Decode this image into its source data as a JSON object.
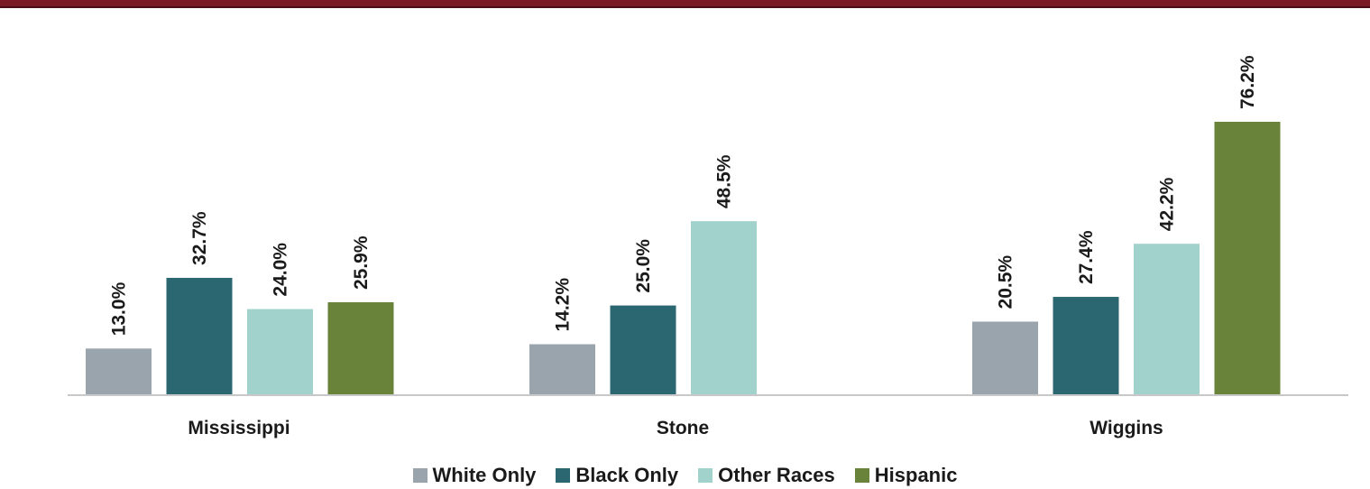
{
  "chart_data": {
    "type": "bar",
    "categories": [
      "Mississippi",
      "Stone",
      "Wiggins"
    ],
    "series": [
      {
        "name": "White Only",
        "color": "#9aa4ad",
        "values": [
          13.0,
          14.2,
          20.5
        ],
        "labels": [
          "13.0%",
          "14.2%",
          "20.5%"
        ]
      },
      {
        "name": "Black Only",
        "color": "#2b6770",
        "values": [
          32.7,
          25.0,
          27.4
        ],
        "labels": [
          "32.7%",
          "25.0%",
          "27.4%"
        ]
      },
      {
        "name": "Other Races",
        "color": "#a1d2cc",
        "values": [
          24.0,
          48.5,
          42.2
        ],
        "labels": [
          "24.0%",
          "48.5%",
          "42.2%"
        ]
      },
      {
        "name": "Hispanic",
        "color": "#6a833b",
        "values": [
          25.9,
          null,
          76.2
        ],
        "labels": [
          "25.9%",
          null,
          "76.2%"
        ]
      }
    ],
    "ylim": [
      0,
      80
    ],
    "grid": false,
    "legend_position": "bottom"
  }
}
